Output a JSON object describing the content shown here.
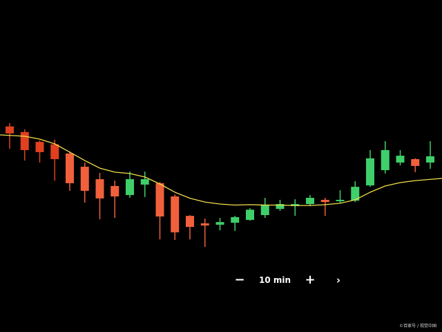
{
  "chart_data": {
    "type": "candlestick",
    "title": "",
    "xlabel": "",
    "ylabel": "",
    "grid": false,
    "ylim": [
      0,
      100
    ],
    "colors": {
      "background": "#000000",
      "up": "#3ecf6a",
      "down": "#f0603c",
      "down_dark": "#e04020",
      "moving_average": "#f2e04a"
    },
    "candles": [
      {
        "open": 74.9,
        "close": 71.4,
        "high": 76.6,
        "low": 63.8
      },
      {
        "open": 72.1,
        "close": 63.1,
        "high": 73.4,
        "low": 57.9
      },
      {
        "open": 67.2,
        "close": 62.1,
        "high": 67.9,
        "low": 56.9
      },
      {
        "open": 66.0,
        "close": 58.6,
        "high": 68.3,
        "low": 47.8
      },
      {
        "open": 61.4,
        "close": 46.6,
        "high": 62.4,
        "low": 42.8
      },
      {
        "open": 54.8,
        "close": 42.8,
        "high": 56.9,
        "low": 36.9
      },
      {
        "open": 48.6,
        "close": 39.0,
        "high": 51.7,
        "low": 28.6
      },
      {
        "open": 45.2,
        "close": 40.0,
        "high": 47.9,
        "low": 29.3
      },
      {
        "open": 40.7,
        "close": 48.6,
        "high": 52.4,
        "low": 39.3
      },
      {
        "open": 45.9,
        "close": 48.6,
        "high": 52.4,
        "low": 39.7
      },
      {
        "open": 46.6,
        "close": 30.0,
        "high": 47.2,
        "low": 18.6
      },
      {
        "open": 40.0,
        "close": 22.1,
        "high": 41.0,
        "low": 18.3
      },
      {
        "open": 30.3,
        "close": 24.8,
        "high": 30.7,
        "low": 18.6
      },
      {
        "open": 26.6,
        "close": 25.5,
        "high": 29.0,
        "low": 14.8
      },
      {
        "open": 25.9,
        "close": 27.2,
        "high": 29.3,
        "low": 23.1
      },
      {
        "open": 26.9,
        "close": 29.7,
        "high": 30.3,
        "low": 22.8
      },
      {
        "open": 28.3,
        "close": 33.4,
        "high": 34.1,
        "low": 27.9
      },
      {
        "open": 30.7,
        "close": 35.9,
        "high": 39.3,
        "low": 29.3
      },
      {
        "open": 33.8,
        "close": 36.2,
        "high": 38.3,
        "low": 32.8
      },
      {
        "open": 35.2,
        "close": 36.2,
        "high": 38.6,
        "low": 30.3
      },
      {
        "open": 36.2,
        "close": 39.3,
        "high": 40.7,
        "low": 35.2
      },
      {
        "open": 38.3,
        "close": 37.2,
        "high": 39.3,
        "low": 30.3
      },
      {
        "open": 37.6,
        "close": 38.3,
        "high": 43.1,
        "low": 36.9
      },
      {
        "open": 37.9,
        "close": 44.8,
        "high": 47.6,
        "low": 37.2
      },
      {
        "open": 45.5,
        "close": 59.0,
        "high": 63.1,
        "low": 44.8
      },
      {
        "open": 53.1,
        "close": 63.1,
        "high": 67.6,
        "low": 51.4
      },
      {
        "open": 56.9,
        "close": 60.3,
        "high": 63.1,
        "low": 55.5
      },
      {
        "open": 58.6,
        "close": 55.2,
        "high": 59.0,
        "low": 52.1
      },
      {
        "open": 56.9,
        "close": 60.0,
        "high": 67.6,
        "low": 53.8
      }
    ],
    "moving_average": [
      70.7,
      70.0,
      68.6,
      66.2,
      62.1,
      57.9,
      54.1,
      52.1,
      51.4,
      49.7,
      46.2,
      42.1,
      39.1,
      37.2,
      36.2,
      35.7,
      35.9,
      35.7,
      35.7,
      35.5,
      35.5,
      35.9,
      36.6,
      38.3,
      42.1,
      45.2,
      46.9,
      47.9,
      49.0
    ]
  },
  "controls": {
    "zoom_out_symbol": "−",
    "interval_label": "10 min",
    "zoom_in_symbol": "+",
    "next_symbol": "›",
    "zoom_out_icon": "minus-icon",
    "zoom_in_icon": "plus-icon",
    "next_icon": "chevron-right-icon"
  },
  "watermark": "©百家号 / 视觉中国"
}
